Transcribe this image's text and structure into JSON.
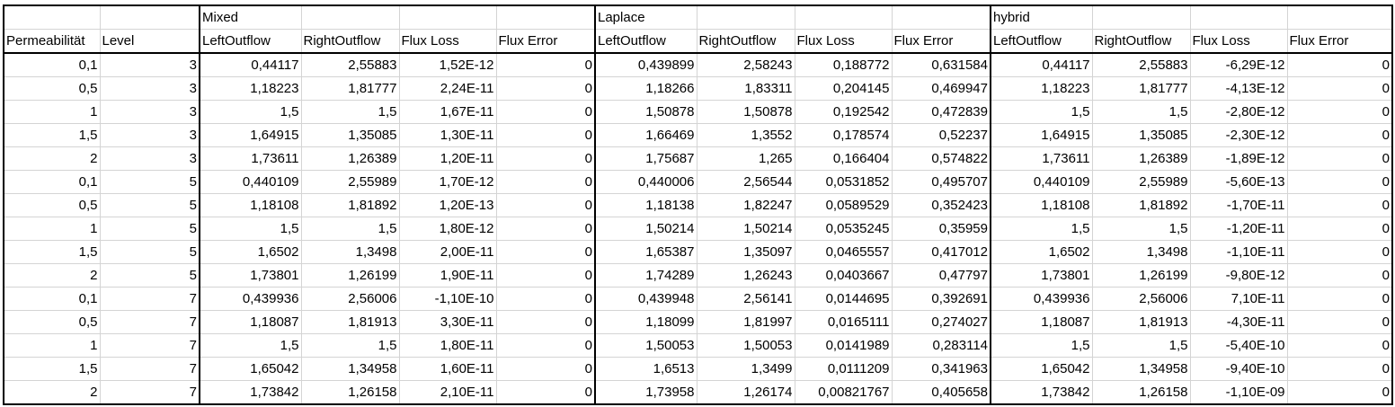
{
  "groups": [
    "Mixed",
    "Laplace",
    "hybrid"
  ],
  "headers": [
    "Permeabilität",
    "Level",
    "LeftOutflow",
    "RightOutflow",
    "Flux Loss",
    "Flux Error",
    "LeftOutflow",
    "RightOutflow",
    "Flux Loss",
    "Flux Error",
    "LeftOutflow",
    "RightOutflow",
    "Flux Loss",
    "Flux Error"
  ],
  "rows": [
    [
      "0,1",
      "3",
      "0,44117",
      "2,55883",
      "1,52E-12",
      "0",
      "0,439899",
      "2,58243",
      "0,188772",
      "0,631584",
      "0,44117",
      "2,55883",
      "-6,29E-12",
      "0"
    ],
    [
      "0,5",
      "3",
      "1,18223",
      "1,81777",
      "2,24E-11",
      "0",
      "1,18266",
      "1,83311",
      "0,204145",
      "0,469947",
      "1,18223",
      "1,81777",
      "-4,13E-12",
      "0"
    ],
    [
      "1",
      "3",
      "1,5",
      "1,5",
      "1,67E-11",
      "0",
      "1,50878",
      "1,50878",
      "0,192542",
      "0,472839",
      "1,5",
      "1,5",
      "-2,80E-12",
      "0"
    ],
    [
      "1,5",
      "3",
      "1,64915",
      "1,35085",
      "1,30E-11",
      "0",
      "1,66469",
      "1,3552",
      "0,178574",
      "0,52237",
      "1,64915",
      "1,35085",
      "-2,30E-12",
      "0"
    ],
    [
      "2",
      "3",
      "1,73611",
      "1,26389",
      "1,20E-11",
      "0",
      "1,75687",
      "1,265",
      "0,166404",
      "0,574822",
      "1,73611",
      "1,26389",
      "-1,89E-12",
      "0"
    ],
    [
      "0,1",
      "5",
      "0,440109",
      "2,55989",
      "1,70E-12",
      "0",
      "0,440006",
      "2,56544",
      "0,0531852",
      "0,495707",
      "0,440109",
      "2,55989",
      "-5,60E-13",
      "0"
    ],
    [
      "0,5",
      "5",
      "1,18108",
      "1,81892",
      "1,20E-13",
      "0",
      "1,18138",
      "1,82247",
      "0,0589529",
      "0,352423",
      "1,18108",
      "1,81892",
      "-1,70E-11",
      "0"
    ],
    [
      "1",
      "5",
      "1,5",
      "1,5",
      "1,80E-12",
      "0",
      "1,50214",
      "1,50214",
      "0,0535245",
      "0,35959",
      "1,5",
      "1,5",
      "-1,20E-11",
      "0"
    ],
    [
      "1,5",
      "5",
      "1,6502",
      "1,3498",
      "2,00E-11",
      "0",
      "1,65387",
      "1,35097",
      "0,0465557",
      "0,417012",
      "1,6502",
      "1,3498",
      "-1,10E-11",
      "0"
    ],
    [
      "2",
      "5",
      "1,73801",
      "1,26199",
      "1,90E-11",
      "0",
      "1,74289",
      "1,26243",
      "0,0403667",
      "0,47797",
      "1,73801",
      "1,26199",
      "-9,80E-12",
      "0"
    ],
    [
      "0,1",
      "7",
      "0,439936",
      "2,56006",
      "-1,10E-10",
      "0",
      "0,439948",
      "2,56141",
      "0,0144695",
      "0,392691",
      "0,439936",
      "2,56006",
      "7,10E-11",
      "0"
    ],
    [
      "0,5",
      "7",
      "1,18087",
      "1,81913",
      "3,30E-11",
      "0",
      "1,18099",
      "1,81997",
      "0,0165111",
      "0,274027",
      "1,18087",
      "1,81913",
      "-4,30E-11",
      "0"
    ],
    [
      "1",
      "7",
      "1,5",
      "1,5",
      "1,80E-11",
      "0",
      "1,50053",
      "1,50053",
      "0,0141989",
      "0,283114",
      "1,5",
      "1,5",
      "-5,40E-10",
      "0"
    ],
    [
      "1,5",
      "7",
      "1,65042",
      "1,34958",
      "1,60E-11",
      "0",
      "1,6513",
      "1,3499",
      "0,0111209",
      "0,341963",
      "1,65042",
      "1,34958",
      "-9,40E-10",
      "0"
    ],
    [
      "2",
      "7",
      "1,73842",
      "1,26158",
      "2,10E-11",
      "0",
      "1,73958",
      "1,26174",
      "0,00821767",
      "0,405658",
      "1,73842",
      "1,26158",
      "-1,10E-09",
      "0"
    ]
  ]
}
